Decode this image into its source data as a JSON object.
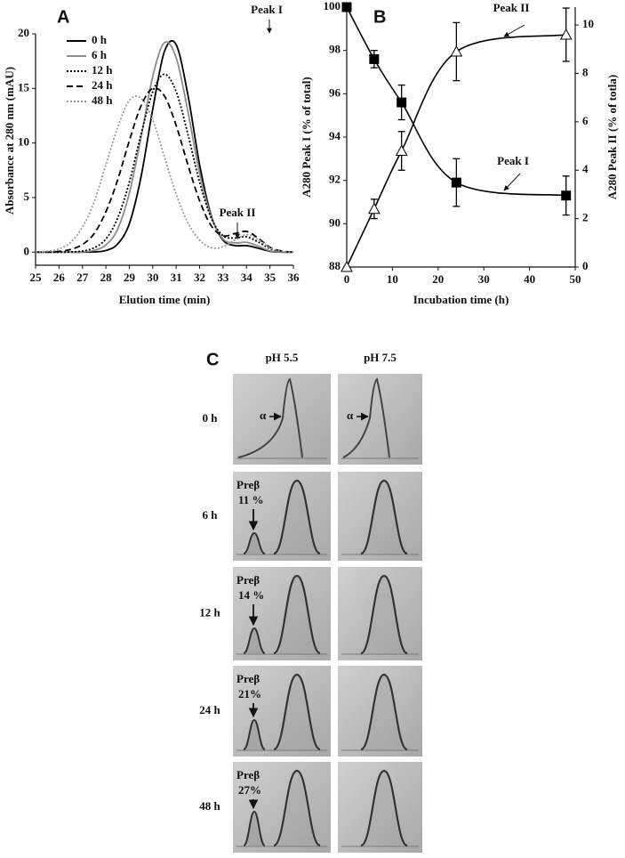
{
  "chart_data": [
    {
      "type": "line",
      "panel": "A",
      "xlabel": "Elution time (min)",
      "ylabel": "Absorbance at 280 nm (mAU)",
      "annotations": [
        "Peak I",
        "Peak II"
      ],
      "x": [
        25,
        25.5,
        26,
        26.5,
        27,
        27.5,
        28,
        28.5,
        29,
        29.5,
        30,
        30.5,
        31,
        31.5,
        32,
        32.5,
        33,
        33.5,
        34,
        34.5,
        35,
        35.5,
        36
      ],
      "series": [
        {
          "name": "0 h",
          "color": "#000000",
          "style": "solid",
          "values": [
            0,
            0,
            0,
            0,
            0,
            0.02,
            0.15,
            0.74,
            2.6,
            6.9,
            13.1,
            18.4,
            19.0,
            14.4,
            8.0,
            3.3,
            1.1,
            0.6,
            0.6,
            0.36,
            0.08,
            0,
            0
          ]
        },
        {
          "name": "6 h",
          "color": "#8c8c8c",
          "style": "solid",
          "values": [
            0,
            0,
            0,
            0,
            0.03,
            0.16,
            0.66,
            2.1,
            5.4,
            10.5,
            16.1,
            19.2,
            17.8,
            12.9,
            7.2,
            3.2,
            1.2,
            0.85,
            0.9,
            0.55,
            0.12,
            0.01,
            0
          ]
        },
        {
          "name": "12 h",
          "color": "#000000",
          "style": "dotted",
          "values": [
            0,
            0,
            0,
            0.02,
            0.1,
            0.4,
            1.2,
            3.1,
            6.4,
            10.8,
            14.7,
            16.3,
            14.7,
            10.8,
            6.4,
            3.1,
            1.5,
            1.3,
            1.4,
            0.92,
            0.32,
            0.06,
            0
          ]
        },
        {
          "name": "24 h",
          "color": "#000000",
          "style": "dashed",
          "values": [
            0,
            0,
            0.07,
            0.25,
            0.7,
            1.7,
            3.7,
            6.6,
            10.2,
            13.4,
            15.0,
            14.3,
            11.6,
            8.0,
            4.7,
            2.4,
            1.5,
            1.7,
            1.9,
            1.27,
            0.45,
            0.1,
            0
          ]
        },
        {
          "name": "48 h",
          "color": "#9a9a9a",
          "style": "dotted",
          "values": [
            0.02,
            0.08,
            0.3,
            0.9,
            2.3,
            4.6,
            8.0,
            11.4,
            13.9,
            14.1,
            12.1,
            8.7,
            5.3,
            2.7,
            1.1,
            0.4,
            0.5,
            1.1,
            1.6,
            1.13,
            0.4,
            0.08,
            0
          ]
        }
      ],
      "xlim": [
        25,
        36
      ],
      "xticks": [
        25,
        26,
        27,
        28,
        29,
        30,
        31,
        32,
        33,
        34,
        35,
        36
      ],
      "ylim": [
        -1.2,
        20
      ],
      "yticks": [
        0,
        5,
        10,
        15,
        20
      ],
      "legend": "upper left"
    },
    {
      "type": "scatter",
      "panel": "B",
      "xlabel": "Incubation time (h)",
      "ylabel": "A280 Peak I (% of total)",
      "y2label": "A280 Peak II (% of totla)",
      "x": [
        0,
        6,
        12,
        24,
        48
      ],
      "series": [
        {
          "name": "Peak I",
          "color": "#000000",
          "marker": "square",
          "axis": "y",
          "values": [
            100,
            97.6,
            95.6,
            91.9,
            91.3
          ],
          "errors": [
            0,
            0.4,
            0.8,
            1.1,
            0.9
          ]
        },
        {
          "name": "Peak II",
          "color": "#000000",
          "marker": "triangle",
          "axis": "y2",
          "values": [
            0,
            2.4,
            4.8,
            8.9,
            9.6
          ],
          "errors": [
            0,
            0.4,
            0.8,
            1.2,
            1.1
          ]
        }
      ],
      "xlim": [
        0,
        50
      ],
      "xticks": [
        0,
        10,
        20,
        30,
        40,
        50
      ],
      "ylim": [
        88,
        100
      ],
      "yticks": [
        88,
        90,
        92,
        94,
        96,
        98,
        100
      ],
      "y2lim": [
        0,
        10.74
      ],
      "y2ticks": [
        0,
        2,
        4,
        6,
        8,
        10
      ]
    }
  ],
  "gel_panel": {
    "label": "C",
    "columns": [
      "pH  5.5",
      "pH  7.5"
    ],
    "rows": [
      {
        "time": "0 h",
        "bands": [
          "α",
          "α"
        ]
      },
      {
        "time": "6 h",
        "band": "Preβ",
        "percent": "11 %"
      },
      {
        "time": "12 h",
        "band": "Preβ",
        "percent": "14 %"
      },
      {
        "time": "24 h",
        "band": "Preβ",
        "percent": "21%"
      },
      {
        "time": "48 h",
        "band": "Preβ",
        "percent": "27%"
      }
    ]
  }
}
